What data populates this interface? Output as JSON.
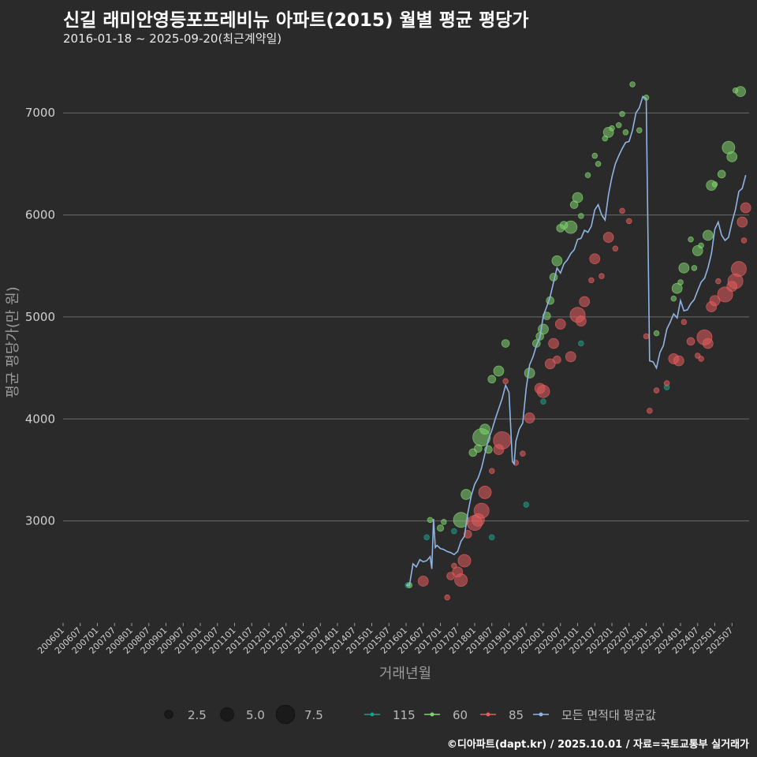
{
  "header": {
    "title": "신길 래미안영등포프레비뉴 아파트(2015) 월별 평균 평당가",
    "subtitle": "2016-01-18 ~ 2025-09-20(최근계약일)",
    "credit": "©디아파트(dapt.kr) / 2025.10.01 / 자료=국토교통부 실거래가"
  },
  "chart_data": {
    "type": "scatter",
    "title": "신길 래미안영등포프레비뉴 아파트(2015) 월별 평균 평당가",
    "xlabel": "거래년월",
    "ylabel": "평균 평당가(만 원)",
    "ylim": [
      2000,
      7450
    ],
    "yticks": [
      3000,
      4000,
      5000,
      6000,
      7000
    ],
    "x_start": "2006-01",
    "x_end": "2025-12",
    "xticks": [
      "200601",
      "200607",
      "200701",
      "200707",
      "200801",
      "200807",
      "200901",
      "200907",
      "201001",
      "201007",
      "201101",
      "201107",
      "201201",
      "201207",
      "201301",
      "201307",
      "201401",
      "201407",
      "201501",
      "201507",
      "201601",
      "201607",
      "201701",
      "201707",
      "201801",
      "201807",
      "201901",
      "201907",
      "202001",
      "202007",
      "202101",
      "202107",
      "202201",
      "202207",
      "202301",
      "202307",
      "202401",
      "202407",
      "202501",
      "202507"
    ],
    "size_legend": [
      2.5,
      5.0,
      7.5
    ],
    "series": [
      {
        "name": "115",
        "color": "#1f9e89",
        "points": [
          [
            2016.05,
            2370,
            1
          ],
          [
            2016.6,
            2840,
            1
          ],
          [
            2017.4,
            2900,
            1
          ],
          [
            2018.5,
            2840,
            1
          ],
          [
            2019.5,
            3160,
            1
          ],
          [
            2020.0,
            4170,
            1
          ],
          [
            2021.1,
            4740,
            1
          ],
          [
            2023.6,
            4310,
            1
          ]
        ]
      },
      {
        "name": "60",
        "color": "#7fd36e",
        "points": [
          [
            2016.1,
            2370,
            1
          ],
          [
            2016.7,
            3010,
            1
          ],
          [
            2017.0,
            2930,
            1.5
          ],
          [
            2017.1,
            2990,
            1
          ],
          [
            2017.6,
            3010,
            5
          ],
          [
            2017.75,
            3260,
            3
          ],
          [
            2017.95,
            3670,
            2
          ],
          [
            2018.1,
            3710,
            2
          ],
          [
            2018.2,
            3820,
            6
          ],
          [
            2018.3,
            3900,
            3
          ],
          [
            2018.4,
            3700,
            2
          ],
          [
            2018.5,
            4390,
            2
          ],
          [
            2018.7,
            4470,
            3
          ],
          [
            2018.9,
            4740,
            2
          ],
          [
            2019.6,
            4450,
            3
          ],
          [
            2019.8,
            4740,
            2
          ],
          [
            2019.9,
            4810,
            2
          ],
          [
            2020.0,
            4880,
            3
          ],
          [
            2020.1,
            5010,
            2
          ],
          [
            2020.2,
            5160,
            2
          ],
          [
            2020.3,
            5390,
            2
          ],
          [
            2020.4,
            5550,
            3
          ],
          [
            2020.5,
            5870,
            2
          ],
          [
            2020.6,
            5900,
            2
          ],
          [
            2020.8,
            5880,
            4
          ],
          [
            2020.9,
            6100,
            2
          ],
          [
            2021.0,
            6170,
            3
          ],
          [
            2021.1,
            5990,
            1
          ],
          [
            2021.3,
            6390,
            1
          ],
          [
            2021.5,
            6580,
            1
          ],
          [
            2021.6,
            6500,
            1
          ],
          [
            2021.8,
            6750,
            1
          ],
          [
            2021.9,
            6810,
            3
          ],
          [
            2022.0,
            6850,
            1
          ],
          [
            2022.2,
            6880,
            1
          ],
          [
            2022.3,
            6990,
            1
          ],
          [
            2022.4,
            6810,
            1
          ],
          [
            2022.6,
            7280,
            1
          ],
          [
            2022.8,
            6830,
            1
          ],
          [
            2023.0,
            7150,
            1
          ],
          [
            2023.3,
            4840,
            1
          ],
          [
            2023.8,
            5180,
            1
          ],
          [
            2023.9,
            5280,
            3
          ],
          [
            2024.0,
            5340,
            1
          ],
          [
            2024.1,
            5480,
            3
          ],
          [
            2024.3,
            5760,
            1
          ],
          [
            2024.4,
            5480,
            1
          ],
          [
            2024.5,
            5650,
            3
          ],
          [
            2024.6,
            5700,
            1
          ],
          [
            2024.8,
            5800,
            3
          ],
          [
            2024.9,
            6290,
            3
          ],
          [
            2025.0,
            6300,
            1
          ],
          [
            2025.2,
            6400,
            2
          ],
          [
            2025.4,
            6660,
            4
          ],
          [
            2025.5,
            6570,
            3
          ],
          [
            2025.6,
            7220,
            1
          ],
          [
            2025.75,
            7210,
            3
          ]
        ]
      },
      {
        "name": "85",
        "color": "#e35d5d",
        "points": [
          [
            2016.5,
            2410,
            3
          ],
          [
            2017.2,
            2250,
            1
          ],
          [
            2017.3,
            2460,
            2
          ],
          [
            2017.4,
            2560,
            1
          ],
          [
            2017.5,
            2500,
            3
          ],
          [
            2017.6,
            2420,
            4
          ],
          [
            2017.7,
            2610,
            4
          ],
          [
            2017.8,
            2870,
            2
          ],
          [
            2018.0,
            2980,
            5
          ],
          [
            2018.1,
            3010,
            4
          ],
          [
            2018.2,
            3100,
            5
          ],
          [
            2018.3,
            3280,
            4
          ],
          [
            2018.5,
            3490,
            1
          ],
          [
            2018.7,
            3700,
            3
          ],
          [
            2018.8,
            3790,
            6
          ],
          [
            2018.9,
            4370,
            1
          ],
          [
            2019.2,
            3570,
            1
          ],
          [
            2019.4,
            3660,
            1
          ],
          [
            2019.6,
            4010,
            3
          ],
          [
            2019.9,
            4300,
            3
          ],
          [
            2020.0,
            4270,
            4
          ],
          [
            2020.2,
            4540,
            3
          ],
          [
            2020.3,
            4740,
            3
          ],
          [
            2020.4,
            4580,
            2
          ],
          [
            2020.5,
            4930,
            3
          ],
          [
            2020.8,
            4610,
            3
          ],
          [
            2021.0,
            5020,
            5
          ],
          [
            2021.1,
            4960,
            3
          ],
          [
            2021.2,
            5150,
            3
          ],
          [
            2021.4,
            5360,
            1
          ],
          [
            2021.5,
            5570,
            3
          ],
          [
            2021.7,
            5400,
            1
          ],
          [
            2021.9,
            5780,
            3
          ],
          [
            2022.1,
            5670,
            1
          ],
          [
            2022.3,
            6040,
            1
          ],
          [
            2022.5,
            5940,
            1
          ],
          [
            2023.0,
            4810,
            1
          ],
          [
            2023.1,
            4080,
            1
          ],
          [
            2023.3,
            4280,
            1
          ],
          [
            2023.6,
            4350,
            1
          ],
          [
            2023.8,
            4590,
            3
          ],
          [
            2023.95,
            4570,
            3
          ],
          [
            2024.1,
            4950,
            1
          ],
          [
            2024.3,
            4760,
            2
          ],
          [
            2024.5,
            4620,
            1
          ],
          [
            2024.6,
            4590,
            1
          ],
          [
            2024.7,
            4800,
            5
          ],
          [
            2024.8,
            4740,
            3
          ],
          [
            2024.9,
            5100,
            3
          ],
          [
            2025.0,
            5160,
            3
          ],
          [
            2025.1,
            5350,
            1
          ],
          [
            2025.3,
            5220,
            5
          ],
          [
            2025.5,
            5300,
            3
          ],
          [
            2025.6,
            5350,
            5
          ],
          [
            2025.7,
            5470,
            5
          ],
          [
            2025.8,
            5930,
            3
          ],
          [
            2025.9,
            6070,
            3
          ],
          [
            2025.85,
            5750,
            1
          ]
        ]
      }
    ],
    "average": {
      "name": "모든 면적대 평균값",
      "color": "#8fb4e4",
      "points": [
        [
          2016.0,
          2370
        ],
        [
          2016.1,
          2370
        ],
        [
          2016.2,
          2580
        ],
        [
          2016.3,
          2550
        ],
        [
          2016.4,
          2620
        ],
        [
          2016.5,
          2600
        ],
        [
          2016.6,
          2610
        ],
        [
          2016.7,
          2650
        ],
        [
          2016.75,
          2530
        ],
        [
          2016.8,
          3020
        ],
        [
          2016.85,
          2740
        ],
        [
          2016.9,
          2760
        ],
        [
          2017.0,
          2730
        ],
        [
          2017.1,
          2720
        ],
        [
          2017.2,
          2700
        ],
        [
          2017.3,
          2690
        ],
        [
          2017.4,
          2670
        ],
        [
          2017.5,
          2700
        ],
        [
          2017.6,
          2800
        ],
        [
          2017.7,
          2850
        ],
        [
          2017.8,
          3080
        ],
        [
          2017.9,
          3250
        ],
        [
          2018.0,
          3360
        ],
        [
          2018.1,
          3420
        ],
        [
          2018.2,
          3520
        ],
        [
          2018.3,
          3660
        ],
        [
          2018.4,
          3800
        ],
        [
          2018.5,
          3890
        ],
        [
          2018.6,
          4000
        ],
        [
          2018.7,
          4100
        ],
        [
          2018.8,
          4200
        ],
        [
          2018.9,
          4330
        ],
        [
          2019.0,
          4260
        ],
        [
          2019.1,
          3580
        ],
        [
          2019.15,
          3560
        ],
        [
          2019.2,
          3780
        ],
        [
          2019.3,
          3900
        ],
        [
          2019.4,
          3960
        ],
        [
          2019.5,
          4300
        ],
        [
          2019.6,
          4530
        ],
        [
          2019.7,
          4610
        ],
        [
          2019.8,
          4720
        ],
        [
          2019.9,
          4800
        ],
        [
          2020.0,
          5010
        ],
        [
          2020.1,
          5100
        ],
        [
          2020.2,
          5200
        ],
        [
          2020.3,
          5340
        ],
        [
          2020.4,
          5480
        ],
        [
          2020.5,
          5430
        ],
        [
          2020.6,
          5520
        ],
        [
          2020.7,
          5560
        ],
        [
          2020.8,
          5620
        ],
        [
          2020.9,
          5660
        ],
        [
          2021.0,
          5760
        ],
        [
          2021.1,
          5770
        ],
        [
          2021.2,
          5850
        ],
        [
          2021.3,
          5830
        ],
        [
          2021.4,
          5890
        ],
        [
          2021.5,
          6050
        ],
        [
          2021.6,
          6100
        ],
        [
          2021.7,
          6000
        ],
        [
          2021.8,
          5950
        ],
        [
          2021.9,
          6200
        ],
        [
          2022.0,
          6370
        ],
        [
          2022.1,
          6500
        ],
        [
          2022.2,
          6580
        ],
        [
          2022.3,
          6650
        ],
        [
          2022.4,
          6710
        ],
        [
          2022.5,
          6720
        ],
        [
          2022.6,
          6830
        ],
        [
          2022.7,
          7000
        ],
        [
          2022.8,
          7050
        ],
        [
          2022.9,
          7160
        ],
        [
          2023.0,
          7140
        ],
        [
          2023.1,
          4570
        ],
        [
          2023.2,
          4560
        ],
        [
          2023.3,
          4500
        ],
        [
          2023.4,
          4650
        ],
        [
          2023.5,
          4720
        ],
        [
          2023.6,
          4880
        ],
        [
          2023.7,
          4950
        ],
        [
          2023.8,
          5030
        ],
        [
          2023.9,
          4990
        ],
        [
          2024.0,
          5160
        ],
        [
          2024.1,
          5060
        ],
        [
          2024.2,
          5070
        ],
        [
          2024.3,
          5130
        ],
        [
          2024.4,
          5170
        ],
        [
          2024.5,
          5260
        ],
        [
          2024.6,
          5340
        ],
        [
          2024.7,
          5380
        ],
        [
          2024.8,
          5480
        ],
        [
          2024.9,
          5620
        ],
        [
          2025.0,
          5860
        ],
        [
          2025.1,
          5930
        ],
        [
          2025.2,
          5800
        ],
        [
          2025.3,
          5750
        ],
        [
          2025.4,
          5780
        ],
        [
          2025.5,
          5930
        ],
        [
          2025.6,
          6050
        ],
        [
          2025.7,
          6230
        ],
        [
          2025.8,
          6260
        ],
        [
          2025.9,
          6390
        ]
      ]
    }
  }
}
